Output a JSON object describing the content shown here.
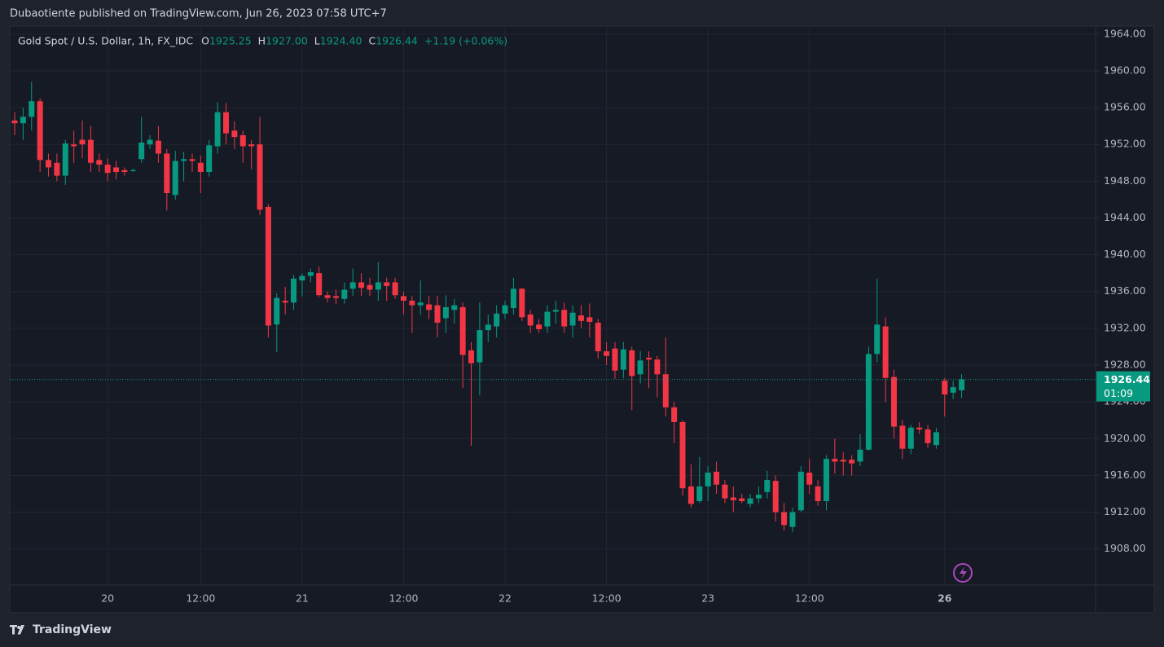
{
  "header": {
    "title": "Dubaotiente published on TradingView.com, Jun 26, 2023 07:58 UTC+7",
    "brand": "TradingView"
  },
  "chart_data": {
    "type": "candlestick",
    "symbol": "Gold Spot / U.S. Dollar, 1h, FX_IDC",
    "legend": [
      {
        "label": "O",
        "value": "1925.25"
      },
      {
        "label": "H",
        "value": "1927.00"
      },
      {
        "label": "L",
        "value": "1924.40"
      },
      {
        "label": "C",
        "value": "1926.44"
      }
    ],
    "change": "+1.19 (+0.06%)",
    "countdown": "01:09",
    "up_color": "#089981",
    "down_color": "#f23645",
    "grid": true,
    "ylim": [
      1904.07,
      1964.87
    ],
    "yticks": [
      {
        "value": 1908,
        "label": "1908.00"
      },
      {
        "value": 1912,
        "label": "1912.00"
      },
      {
        "value": 1916,
        "label": "1916.00"
      },
      {
        "value": 1920,
        "label": "1920.00"
      },
      {
        "value": 1924,
        "label": "1924.00"
      },
      {
        "value": 1928,
        "label": "1928.00"
      },
      {
        "value": 1932,
        "label": "1932.00"
      },
      {
        "value": 1936,
        "label": "1936.00"
      },
      {
        "value": 1940,
        "label": "1940.00"
      },
      {
        "value": 1944,
        "label": "1944.00"
      },
      {
        "value": 1948,
        "label": "1948.00"
      },
      {
        "value": 1952,
        "label": "1952.00"
      },
      {
        "value": 1956,
        "label": "1956.00"
      },
      {
        "value": 1960,
        "label": "1960.00"
      },
      {
        "value": 1964,
        "label": "1964.00"
      }
    ],
    "categories": [
      null,
      null,
      null,
      null,
      null,
      null,
      null,
      null,
      null,
      null,
      null,
      "20",
      null,
      null,
      null,
      null,
      null,
      null,
      null,
      null,
      null,
      null,
      "12:00",
      null,
      null,
      null,
      null,
      null,
      null,
      null,
      null,
      null,
      null,
      null,
      "21",
      null,
      null,
      null,
      null,
      null,
      null,
      null,
      null,
      null,
      null,
      null,
      "12:00",
      null,
      null,
      null,
      null,
      null,
      null,
      null,
      null,
      null,
      null,
      null,
      "22",
      null,
      null,
      null,
      null,
      null,
      null,
      null,
      null,
      null,
      null,
      null,
      "12:00",
      null,
      null,
      null,
      null,
      null,
      null,
      null,
      null,
      null,
      null,
      null,
      "23",
      null,
      null,
      null,
      null,
      null,
      null,
      null,
      null,
      null,
      null,
      null,
      "12:00",
      null,
      null,
      null,
      null,
      null,
      null,
      null,
      null,
      null,
      null,
      null,
      null,
      null,
      null,
      null,
      "26",
      null,
      null
    ],
    "open": [
      1954.6,
      1954.3,
      1955.0,
      1956.7,
      1950.3,
      1950.0,
      1948.6,
      1952.0,
      1952.5,
      1952.5,
      1950.3,
      1949.8,
      1949.5,
      1949.2,
      1949.1,
      1950.4,
      1952.0,
      1952.4,
      1951.0,
      1946.5,
      1950.2,
      1950.4,
      1950.0,
      1949.0,
      1951.8,
      1955.5,
      1953.5,
      1953.0,
      1952.0,
      1952.0,
      1945.2,
      1932.4,
      1935.0,
      1934.8,
      1937.2,
      1937.7,
      1938.0,
      1935.6,
      1935.5,
      1935.2,
      1936.3,
      1937.0,
      1936.7,
      1936.2,
      1937.0,
      1937.0,
      1935.5,
      1935.0,
      1934.5,
      1934.6,
      1934.5,
      1933.1,
      1934.0,
      1934.3,
      1929.6,
      1928.3,
      1931.8,
      1932.2,
      1933.6,
      1934.2,
      1936.3,
      1933.5,
      1932.4,
      1932.2,
      1933.8,
      1934.0,
      1932.3,
      1933.4,
      1933.2,
      1932.6,
      1929.5,
      1929.8,
      1927.5,
      1929.6,
      1927.0,
      1928.8,
      1928.6,
      1927.0,
      1923.4,
      1921.8,
      1914.8,
      1913.2,
      1914.8,
      1916.4,
      1915.0,
      1913.6,
      1913.5,
      1912.9,
      1913.5,
      1914.2,
      1915.4,
      1912.0,
      1910.4,
      1912.2,
      1916.3,
      1914.8,
      1913.2,
      1917.8,
      1917.7,
      1917.7,
      1917.5,
      1918.8,
      1929.2,
      1932.2,
      1926.7,
      1921.4,
      1918.9,
      1921.2,
      1921.0,
      1919.3,
      1926.3,
      1925.0,
      1925.25
    ],
    "high": [
      1955.5,
      1956.0,
      1958.8,
      1957.0,
      1951.0,
      1951.0,
      1952.5,
      1953.5,
      1954.6,
      1954.0,
      1951.0,
      1950.5,
      1950.2,
      1949.5,
      1949.4,
      1955.0,
      1953.0,
      1954.0,
      1951.5,
      1951.3,
      1951.2,
      1951.0,
      1950.8,
      1952.5,
      1956.6,
      1956.5,
      1954.5,
      1953.5,
      1952.5,
      1955.0,
      1945.5,
      1935.8,
      1936.5,
      1937.8,
      1938.0,
      1938.5,
      1938.7,
      1936.0,
      1936.2,
      1937.0,
      1938.5,
      1938.0,
      1937.5,
      1939.2,
      1937.5,
      1937.5,
      1936.0,
      1935.5,
      1937.2,
      1935.5,
      1935.5,
      1935.6,
      1935.2,
      1934.8,
      1930.5,
      1934.8,
      1933.5,
      1934.5,
      1935.0,
      1937.5,
      1936.4,
      1934.0,
      1933.0,
      1934.5,
      1935.0,
      1934.8,
      1934.5,
      1934.5,
      1934.7,
      1933.0,
      1930.5,
      1930.5,
      1930.5,
      1930.0,
      1929.5,
      1929.5,
      1929.0,
      1931.0,
      1924.0,
      1922.0,
      1917.2,
      1918.0,
      1917.0,
      1917.5,
      1915.5,
      1914.8,
      1914.0,
      1914.0,
      1914.8,
      1916.5,
      1916.0,
      1913.0,
      1912.5,
      1917.0,
      1917.8,
      1915.5,
      1918.2,
      1920.0,
      1918.5,
      1918.2,
      1920.5,
      1930.0,
      1937.4,
      1933.2,
      1927.5,
      1922.0,
      1921.5,
      1921.8,
      1921.5,
      1921.2,
      1926.6,
      1926.3,
      1927.0
    ],
    "low": [
      1953.0,
      1952.5,
      1953.5,
      1949.0,
      1948.5,
      1948.0,
      1947.6,
      1950.0,
      1950.5,
      1949.0,
      1949.0,
      1948.0,
      1948.2,
      1948.6,
      1949.0,
      1950.0,
      1951.5,
      1950.0,
      1944.8,
      1946.0,
      1948.0,
      1949.0,
      1946.7,
      1948.5,
      1951.0,
      1952.0,
      1951.5,
      1950.0,
      1949.3,
      1944.3,
      1931.0,
      1929.4,
      1933.5,
      1934.0,
      1935.5,
      1937.0,
      1935.4,
      1934.8,
      1934.6,
      1934.7,
      1935.5,
      1935.5,
      1935.5,
      1935.0,
      1935.0,
      1935.2,
      1933.5,
      1931.5,
      1933.5,
      1933.0,
      1931.0,
      1931.5,
      1932.5,
      1925.5,
      1919.2,
      1924.7,
      1930.5,
      1931.0,
      1933.0,
      1933.5,
      1932.8,
      1931.5,
      1931.5,
      1931.5,
      1932.5,
      1931.5,
      1931.0,
      1932.0,
      1931.0,
      1928.7,
      1928.0,
      1926.5,
      1926.6,
      1923.1,
      1926.0,
      1925.5,
      1924.5,
      1922.4,
      1919.5,
      1913.8,
      1912.5,
      1913.0,
      1913.2,
      1914.0,
      1913.0,
      1912.0,
      1913.0,
      1912.5,
      1913.0,
      1913.5,
      1911.0,
      1910.0,
      1909.8,
      1912.0,
      1914.0,
      1912.7,
      1912.2,
      1916.2,
      1916.0,
      1916.0,
      1917.0,
      1918.7,
      1928.3,
      1924.0,
      1920.0,
      1917.8,
      1918.3,
      1920.5,
      1919.0,
      1918.9,
      1922.4,
      1924.3,
      1924.4
    ],
    "close": [
      1954.3,
      1955.0,
      1956.7,
      1950.3,
      1949.5,
      1948.6,
      1952.1,
      1951.8,
      1952.0,
      1950.0,
      1949.8,
      1948.9,
      1949.0,
      1949.0,
      1949.2,
      1952.2,
      1952.5,
      1951.0,
      1946.7,
      1950.2,
      1950.4,
      1950.2,
      1949.0,
      1951.9,
      1955.5,
      1953.2,
      1952.8,
      1951.8,
      1951.8,
      1944.9,
      1932.3,
      1935.3,
      1934.8,
      1937.4,
      1937.7,
      1938.1,
      1935.6,
      1935.3,
      1935.3,
      1936.2,
      1937.0,
      1936.4,
      1936.2,
      1937.0,
      1936.6,
      1935.6,
      1935.0,
      1934.5,
      1934.8,
      1934.0,
      1932.6,
      1934.3,
      1934.5,
      1929.1,
      1928.2,
      1931.8,
      1932.4,
      1933.6,
      1934.5,
      1936.3,
      1933.2,
      1932.3,
      1931.9,
      1933.8,
      1934.0,
      1932.2,
      1933.7,
      1932.8,
      1932.7,
      1929.5,
      1929.0,
      1927.4,
      1929.7,
      1926.8,
      1928.5,
      1928.6,
      1927.0,
      1923.4,
      1921.8,
      1914.6,
      1912.9,
      1914.8,
      1916.3,
      1915.0,
      1913.5,
      1913.3,
      1913.2,
      1913.5,
      1913.9,
      1915.5,
      1912.0,
      1910.6,
      1912.0,
      1916.4,
      1915.0,
      1913.2,
      1917.8,
      1917.5,
      1917.5,
      1917.3,
      1918.8,
      1929.2,
      1932.4,
      1926.6,
      1921.3,
      1918.9,
      1921.2,
      1921.0,
      1919.5,
      1920.7,
      1924.8,
      1925.6,
      1926.44
    ]
  }
}
